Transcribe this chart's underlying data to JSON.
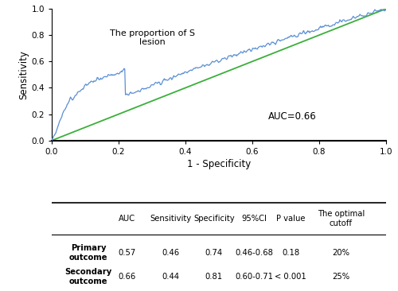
{
  "roc_label": "The proportion of S\nlesion",
  "auc_text": "AUC=0.66",
  "xlabel": "1 - Specificity",
  "ylabel": "Sensitivity",
  "xlim": [
    0.0,
    1.0
  ],
  "ylim": [
    0.0,
    1.0
  ],
  "xticks": [
    0.0,
    0.2,
    0.4,
    0.6,
    0.8,
    1.0
  ],
  "yticks": [
    0.0,
    0.2,
    0.4,
    0.6,
    0.8,
    1.0
  ],
  "roc_color": "#5b8fd4",
  "diag_color": "#3aaf3a",
  "table_headers": [
    "",
    "AUC",
    "Sensitivity",
    "Specificity",
    "95%CI",
    "P value",
    "The optimal\ncutoff"
  ],
  "table_rows": [
    [
      "Primary\noutcome",
      "0.57",
      "0.46",
      "0.74",
      "0.46-0.68",
      "0.18",
      "20%"
    ],
    [
      "Secondary\noutcome",
      "0.66",
      "0.44",
      "0.81",
      "0.60-0.71",
      "< 0.001",
      "25%"
    ]
  ],
  "background_color": "#ffffff"
}
